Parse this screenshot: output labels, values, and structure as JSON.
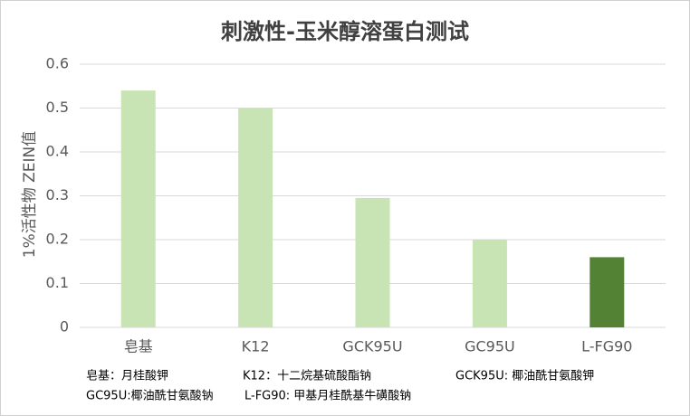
{
  "chart_data": {
    "type": "bar",
    "title": "刺激性-玉米醇溶蛋白测试",
    "y_label": "1%活性物 ZEIN值",
    "categories": [
      "皂基",
      "K12",
      "GCK95U",
      "GC95U",
      "L-FG90"
    ],
    "values": [
      0.54,
      0.5,
      0.295,
      0.2,
      0.16
    ],
    "colors": [
      "#c9e4b4",
      "#c9e4b4",
      "#c9e4b4",
      "#c9e4b4",
      "#548235"
    ],
    "ylim": [
      0,
      0.6
    ],
    "yticks": [
      0,
      0.1,
      0.2,
      0.3,
      0.4,
      0.5,
      0.6
    ],
    "grid": true,
    "notes": [
      "皂基：月桂酸钾",
      "K12：十二烷基硫酸酯钠",
      "GCK95U: 椰油酰甘氨酸钾",
      "GC95U:椰油酰甘氨酸钠",
      "L-FG90: 甲基月桂酰基牛磺酸钠"
    ]
  }
}
